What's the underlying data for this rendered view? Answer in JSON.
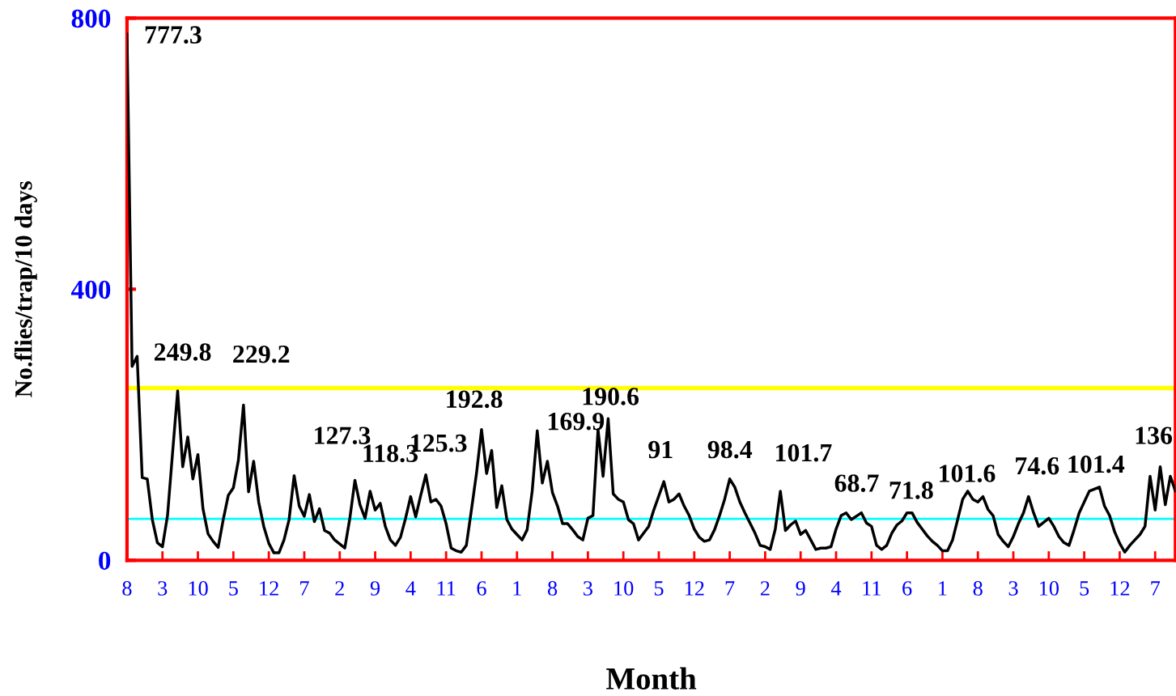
{
  "chart_data": {
    "type": "line",
    "xlabel": "Month",
    "ylabel": "No.flies/trap/10 days",
    "categories": [
      "8",
      null,
      null,
      null,
      null,
      null,
      null,
      "3",
      null,
      null,
      null,
      null,
      null,
      null,
      "10",
      null,
      null,
      null,
      null,
      null,
      null,
      "5",
      null,
      null,
      null,
      null,
      null,
      null,
      "12",
      null,
      null,
      null,
      null,
      null,
      null,
      "7",
      null,
      null,
      null,
      null,
      null,
      null,
      "2",
      null,
      null,
      null,
      null,
      null,
      null,
      "9",
      null,
      null,
      null,
      null,
      null,
      null,
      "4",
      null,
      null,
      null,
      null,
      null,
      null,
      "11",
      null,
      null,
      null,
      null,
      null,
      null,
      "6",
      null,
      null,
      null,
      null,
      null,
      null,
      "1",
      null,
      null,
      null,
      null,
      null,
      null,
      "8",
      null,
      null,
      null,
      null,
      null,
      null,
      "3",
      null,
      null,
      null,
      null,
      null,
      null,
      "10",
      null,
      null,
      null,
      null,
      null,
      null,
      "5",
      null,
      null,
      null,
      null,
      null,
      null,
      "12",
      null,
      null,
      null,
      null,
      null,
      null,
      "7",
      null,
      null,
      null,
      null,
      null,
      null,
      "2",
      null,
      null,
      null,
      null,
      null,
      null,
      "9",
      null,
      null,
      null,
      null,
      null,
      null,
      "4",
      null,
      null,
      null,
      null,
      null,
      null,
      "11",
      null,
      null,
      null,
      null,
      null,
      null,
      "6",
      null,
      null,
      null,
      null,
      null,
      null,
      "1",
      null,
      null,
      null,
      null,
      null,
      null,
      "8",
      null,
      null,
      null,
      null,
      null,
      null,
      "3",
      null,
      null,
      null,
      null,
      null,
      null,
      "10",
      null,
      null,
      null,
      null,
      null,
      null,
      "5",
      null,
      null,
      null,
      null,
      null,
      null,
      "12",
      null,
      null,
      null,
      null,
      null,
      null,
      "7",
      null,
      null,
      null,
      null
    ],
    "ylim": [
      0,
      800
    ],
    "yticks": [
      0,
      400,
      800
    ],
    "grid": false,
    "legend": false,
    "marker": "none",
    "line_style": "solid",
    "series": [
      {
        "color": "#000000",
        "values": [
          777,
          286,
          301,
          122,
          120,
          60,
          26,
          20,
          66,
          159,
          250,
          138,
          182,
          120,
          156,
          76,
          39,
          28,
          19,
          60,
          96,
          107,
          148,
          229,
          101,
          146,
          86,
          50,
          25,
          11,
          11,
          30,
          60,
          125,
          80,
          65,
          97,
          57,
          76,
          44,
          40,
          30,
          24,
          18,
          62,
          118,
          82,
          62,
          102,
          74,
          84,
          50,
          30,
          22,
          34,
          62,
          94,
          64,
          96,
          126,
          86,
          90,
          80,
          54,
          18,
          14,
          12,
          22,
          74,
          128,
          193,
          128,
          162,
          78,
          110,
          60,
          46,
          38,
          30,
          45,
          102,
          191,
          114,
          146,
          100,
          80,
          54,
          54,
          45,
          35,
          30,
          62,
          66,
          193,
          124,
          209,
          98,
          90,
          86,
          60,
          54,
          30,
          40,
          50,
          74,
          95,
          116,
          86,
          90,
          98,
          80,
          66,
          46,
          34,
          28,
          30,
          45,
          66,
          90,
          120,
          108,
          86,
          70,
          55,
          40,
          22,
          20,
          16,
          46,
          102,
          44,
          52,
          58,
          38,
          44,
          30,
          16,
          18,
          18,
          20,
          46,
          66,
          70,
          60,
          65,
          70,
          55,
          50,
          22,
          16,
          22,
          40,
          52,
          58,
          70,
          70,
          56,
          46,
          36,
          28,
          22,
          14,
          14,
          30,
          60,
          90,
          102,
          90,
          86,
          94,
          75,
          66,
          38,
          28,
          20,
          35,
          54,
          70,
          94,
          70,
          50,
          56,
          62,
          50,
          35,
          26,
          22,
          45,
          70,
          86,
          102,
          105,
          108,
          80,
          66,
          42,
          25,
          12,
          22,
          30,
          38,
          50,
          124,
          74,
          138,
          82,
          124,
          102
        ]
      }
    ],
    "ref_lines": [
      {
        "axis": "y",
        "value": 254,
        "color": "#ffff00"
      },
      {
        "axis": "y",
        "value": 61,
        "color": "#00ffff"
      }
    ],
    "annotations": [
      "777.3",
      "249.8",
      "229.2",
      "127.3",
      "118.3",
      "125.3",
      "192.8",
      "169.9",
      "190.6",
      "91",
      "98.4",
      "101.7",
      "68.7",
      "71.8",
      "101.6",
      "74.6",
      "101.4",
      "136"
    ]
  }
}
